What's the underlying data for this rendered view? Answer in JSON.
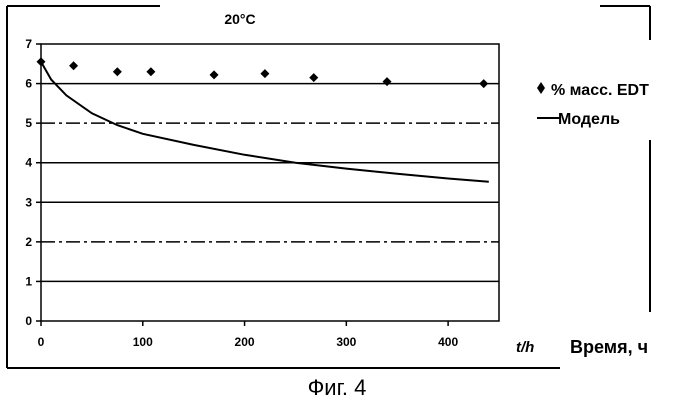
{
  "figure_caption": "Фиг. 4",
  "chart_data": {
    "type": "scatter",
    "title": "20°C",
    "xlabel": "Время, ч",
    "x_unit_label": "t/h",
    "ylabel": "",
    "xlim": [
      0,
      450
    ],
    "ylim": [
      0,
      7
    ],
    "x_ticks": [
      0,
      100,
      200,
      300,
      400
    ],
    "y_ticks": [
      0,
      1,
      2,
      3,
      4,
      5,
      6,
      7
    ],
    "grid": true,
    "legend_position": "right",
    "series": [
      {
        "name": "% масс. EDT",
        "kind": "markers",
        "marker": "diamond",
        "points": [
          {
            "x": 0,
            "y": 6.55
          },
          {
            "x": 32,
            "y": 6.45
          },
          {
            "x": 75,
            "y": 6.3
          },
          {
            "x": 108,
            "y": 6.3
          },
          {
            "x": 170,
            "y": 6.22
          },
          {
            "x": 220,
            "y": 6.25
          },
          {
            "x": 268,
            "y": 6.15
          },
          {
            "x": 340,
            "y": 6.05
          },
          {
            "x": 435,
            "y": 6.0
          }
        ]
      },
      {
        "name": "Модель",
        "kind": "line",
        "points": [
          {
            "x": 0,
            "y": 6.55
          },
          {
            "x": 10,
            "y": 6.1
          },
          {
            "x": 25,
            "y": 5.7
          },
          {
            "x": 50,
            "y": 5.25
          },
          {
            "x": 75,
            "y": 4.95
          },
          {
            "x": 100,
            "y": 4.73
          },
          {
            "x": 150,
            "y": 4.45
          },
          {
            "x": 200,
            "y": 4.2
          },
          {
            "x": 250,
            "y": 4.0
          },
          {
            "x": 300,
            "y": 3.85
          },
          {
            "x": 350,
            "y": 3.72
          },
          {
            "x": 400,
            "y": 3.6
          },
          {
            "x": 440,
            "y": 3.52
          }
        ]
      }
    ]
  }
}
